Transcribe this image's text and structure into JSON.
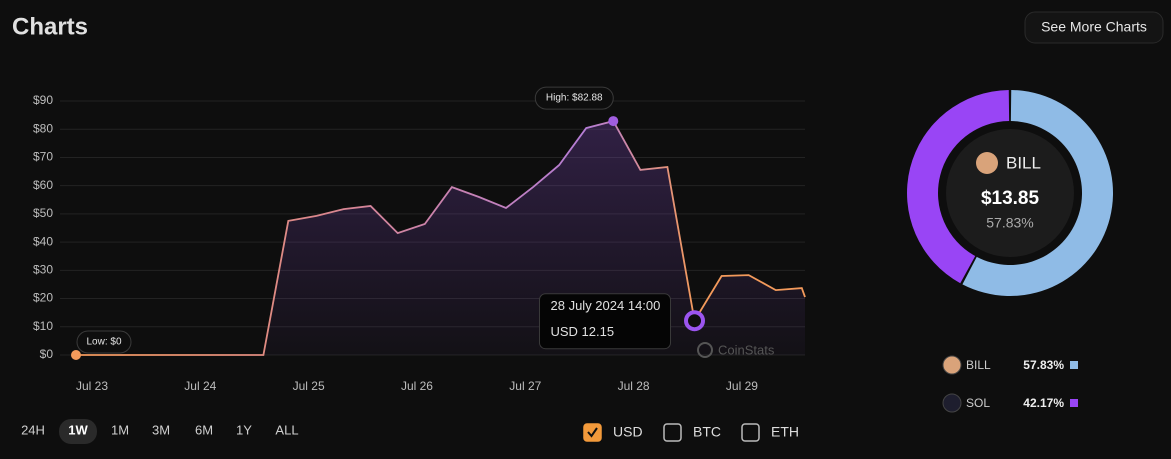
{
  "header": {
    "title": "Charts",
    "button": "See More Charts"
  },
  "chart_data": [
    {
      "type": "line",
      "x": [
        0,
        1.73,
        1.96,
        2.22,
        2.47,
        2.72,
        2.97,
        3.22,
        3.47,
        3.72,
        3.97,
        4.22,
        4.46,
        4.71,
        4.96,
        5.21,
        5.46,
        5.71,
        5.96,
        6.21,
        6.46,
        6.7,
        6.73
      ],
      "series": [
        {
          "color": "#f39a5b",
          "values": [
            0,
            0,
            47.5,
            49.3,
            51.7,
            52.8,
            43.2,
            46.4,
            59.5,
            56,
            52.1,
            59.5,
            67.3,
            80.4,
            82.88,
            65.6,
            66.6,
            12.15,
            28,
            28.3,
            23,
            23.7,
            20.5
          ]
        }
      ],
      "xlim": [
        0,
        6.73
      ],
      "xticks": [
        {
          "value": 0,
          "label": "Jul 23"
        },
        {
          "value": 1,
          "label": "Jul 24"
        },
        {
          "value": 2,
          "label": "Jul 25"
        },
        {
          "value": 3,
          "label": "Jul 26"
        },
        {
          "value": 4,
          "label": "Jul 27"
        },
        {
          "value": 5,
          "label": "Jul 28"
        },
        {
          "value": 6,
          "label": "Jul 29"
        }
      ],
      "ylim": [
        0,
        90
      ],
      "yticks": [
        {
          "value": 0,
          "label": "$0"
        },
        {
          "value": 10,
          "label": "$10"
        },
        {
          "value": 20,
          "label": "$20"
        },
        {
          "value": 30,
          "label": "$30"
        },
        {
          "value": 40,
          "label": "$40"
        },
        {
          "value": 50,
          "label": "$50"
        },
        {
          "value": 60,
          "label": "$60"
        },
        {
          "value": 70,
          "label": "$70"
        },
        {
          "value": 80,
          "label": "$80"
        },
        {
          "value": 90,
          "label": "$90"
        }
      ],
      "grid": true,
      "low_label": "Low: $0",
      "high_label": "High: $82.88",
      "hover_index": 17,
      "tooltip_time": "28 July 2024 14:00",
      "tooltip_value": "USD 12.15",
      "watermark": "CoinStats"
    },
    {
      "type": "pie",
      "categories": [
        "BILL",
        "SOL"
      ],
      "values": [
        57.83,
        42.17
      ],
      "value_labels": [
        "57.83%",
        "42.17%"
      ],
      "colors": [
        "#8fbbe6",
        "#9945f5"
      ],
      "center_value": "$13.85"
    }
  ],
  "timeframes": [
    "24H",
    "1W",
    "1M",
    "3M",
    "6M",
    "1Y",
    "ALL"
  ],
  "selected_timeframe": 1,
  "currencies": [
    {
      "label": "USD",
      "checked": true
    },
    {
      "label": "BTC",
      "checked": false
    },
    {
      "label": "ETH",
      "checked": false
    }
  ]
}
